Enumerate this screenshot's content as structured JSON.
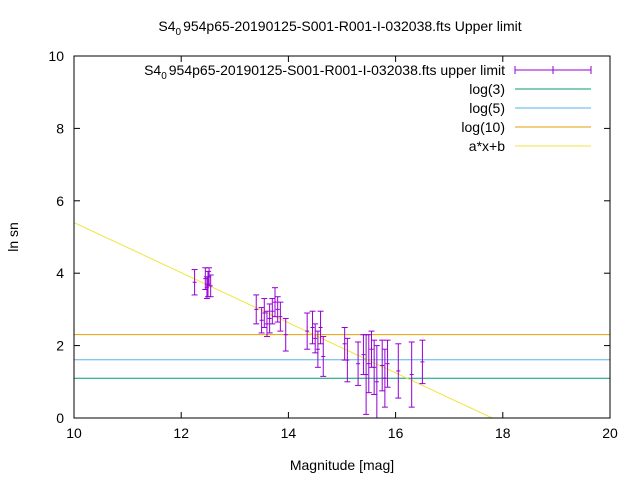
{
  "chart_data": {
    "type": "scatter",
    "title": "S4_0954p65-20190125-S001-R001-I-032038.fts Upper limit",
    "title_parts": {
      "prefix": "S4",
      "subscript": "0",
      "suffix": "954p65-20190125-S001-R001-I-032038.fts Upper limit"
    },
    "xlabel": "Magnitude [mag]",
    "ylabel": "ln sn",
    "xlim": [
      10,
      20
    ],
    "ylim": [
      0,
      10
    ],
    "xticks": [
      "10",
      "12",
      "14",
      "16",
      "18",
      "20"
    ],
    "yticks": [
      "0",
      "2",
      "4",
      "6",
      "8",
      "10"
    ],
    "grid": false,
    "legend_position": "top-right",
    "series": [
      {
        "name": "S4_0954p65-20190125-S001-R001-I-032038.fts upper limit",
        "name_parts": {
          "prefix": "S4",
          "subscript": "0",
          "suffix": "954p65-20190125-S001-R001-I-032038.fts upper limit"
        },
        "kind": "errorbars",
        "color": "#9400d3",
        "points": [
          {
            "x": 12.25,
            "y": 3.75,
            "err": 0.35
          },
          {
            "x": 12.45,
            "y": 3.85,
            "err": 0.3
          },
          {
            "x": 12.48,
            "y": 3.6,
            "err": 0.3
          },
          {
            "x": 12.5,
            "y": 3.7,
            "err": 0.35
          },
          {
            "x": 12.52,
            "y": 3.9,
            "err": 0.25
          },
          {
            "x": 12.55,
            "y": 3.65,
            "err": 0.3
          },
          {
            "x": 13.4,
            "y": 3.0,
            "err": 0.4
          },
          {
            "x": 13.5,
            "y": 2.7,
            "err": 0.35
          },
          {
            "x": 13.55,
            "y": 2.9,
            "err": 0.4
          },
          {
            "x": 13.6,
            "y": 2.6,
            "err": 0.35
          },
          {
            "x": 13.65,
            "y": 2.75,
            "err": 0.4
          },
          {
            "x": 13.7,
            "y": 2.95,
            "err": 0.35
          },
          {
            "x": 13.75,
            "y": 3.2,
            "err": 0.4
          },
          {
            "x": 13.8,
            "y": 3.0,
            "err": 0.35
          },
          {
            "x": 13.85,
            "y": 2.8,
            "err": 0.4
          },
          {
            "x": 13.95,
            "y": 2.3,
            "err": 0.45
          },
          {
            "x": 14.35,
            "y": 2.4,
            "err": 0.5
          },
          {
            "x": 14.45,
            "y": 2.5,
            "err": 0.45
          },
          {
            "x": 14.5,
            "y": 2.2,
            "err": 0.4
          },
          {
            "x": 14.55,
            "y": 1.9,
            "err": 0.5
          },
          {
            "x": 14.6,
            "y": 2.5,
            "err": 0.45
          },
          {
            "x": 14.65,
            "y": 1.7,
            "err": 0.55
          },
          {
            "x": 15.05,
            "y": 2.05,
            "err": 0.45
          },
          {
            "x": 15.1,
            "y": 1.6,
            "err": 0.6
          },
          {
            "x": 15.3,
            "y": 1.5,
            "err": 0.6
          },
          {
            "x": 15.4,
            "y": 1.75,
            "err": 0.55
          },
          {
            "x": 15.45,
            "y": 1.2,
            "err": 1.1
          },
          {
            "x": 15.5,
            "y": 1.5,
            "err": 0.8
          },
          {
            "x": 15.55,
            "y": 1.9,
            "err": 0.5
          },
          {
            "x": 15.6,
            "y": 1.4,
            "err": 0.75
          },
          {
            "x": 15.65,
            "y": 1.0,
            "err": 1.0
          },
          {
            "x": 15.75,
            "y": 1.45,
            "err": 0.7
          },
          {
            "x": 15.8,
            "y": 1.1,
            "err": 0.8
          },
          {
            "x": 15.85,
            "y": 1.5,
            "err": 0.65
          },
          {
            "x": 16.05,
            "y": 1.3,
            "err": 0.75
          },
          {
            "x": 16.3,
            "y": 1.2,
            "err": 0.9
          },
          {
            "x": 16.5,
            "y": 1.55,
            "err": 0.6
          }
        ]
      },
      {
        "name": "log(3)",
        "kind": "hline",
        "y": 1.0986,
        "color": "#009e73"
      },
      {
        "name": "log(5)",
        "kind": "hline",
        "y": 1.6094,
        "color": "#56b4e9"
      },
      {
        "name": "log(10)",
        "kind": "hline",
        "y": 2.3026,
        "color": "#e69f00"
      },
      {
        "name": "a*x+b",
        "kind": "line",
        "color": "#f0e442",
        "from": [
          10,
          5.4
        ],
        "to": [
          17.8,
          0
        ]
      }
    ]
  }
}
